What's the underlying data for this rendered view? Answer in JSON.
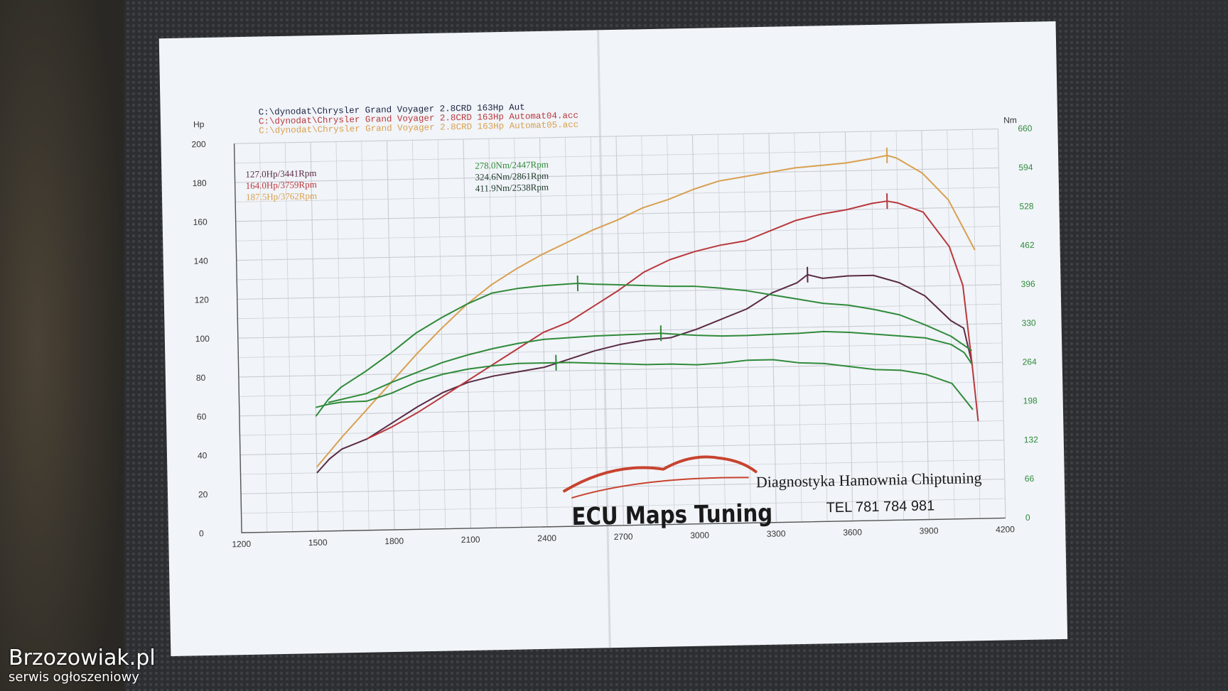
{
  "watermark": {
    "site": "Brzozowiak.pl",
    "tagline": "serwis ogłoszeniowy"
  },
  "colors": {
    "hp_stock": "#5a2a45",
    "hp_stage1": "#b8383c",
    "hp_stage2": "#d8a050",
    "torque": "#2f8a3a",
    "brand_swoosh": "#c7432f",
    "paper": "#f1f4f8",
    "grid": "#c9ccd3"
  },
  "chart_data": {
    "type": "line",
    "files": [
      "C:\\dynodat\\Chrysler Grand Voyager 2.8CRD 163Hp Aut",
      "C:\\dynodat\\Chrysler Grand Voyager 2.8CRD 163Hp Automat04.acc",
      "C:\\dynodat\\Chrysler Grand Voyager 2.8CRD 163Hp Automat05.acc"
    ],
    "left_axis": {
      "label": "Hp",
      "min": 0,
      "max": 200,
      "ticks": [
        0,
        20,
        40,
        60,
        80,
        100,
        120,
        140,
        160,
        180,
        200
      ]
    },
    "right_axis": {
      "label": "Nm",
      "min": 0,
      "max": 660,
      "ticks": [
        0,
        66,
        132,
        198,
        264,
        330,
        396,
        462,
        528,
        594,
        660
      ]
    },
    "x_axis": {
      "min": 1200,
      "max": 4200,
      "ticks": [
        1200,
        1500,
        1800,
        2100,
        2400,
        2700,
        3000,
        3300,
        3600,
        3900,
        4200
      ]
    },
    "power_peaks": [
      "127.0Hp/3441Rpm",
      "164.0Hp/3759Rpm",
      "187.5Hp/3762Rpm"
    ],
    "torque_peaks": [
      "278.0Nm/2447Rpm",
      "324.6Nm/2861Rpm",
      "411.9Nm/2538Rpm"
    ],
    "series": [
      {
        "unit": "hp",
        "color": "hp_stock",
        "peak_rpm": 3441,
        "points": [
          [
            1500,
            30
          ],
          [
            1550,
            37
          ],
          [
            1600,
            42
          ],
          [
            1700,
            47
          ],
          [
            1800,
            55
          ],
          [
            1900,
            63
          ],
          [
            2000,
            70
          ],
          [
            2100,
            75
          ],
          [
            2200,
            78
          ],
          [
            2300,
            80
          ],
          [
            2400,
            82
          ],
          [
            2500,
            86
          ],
          [
            2600,
            90
          ],
          [
            2700,
            93
          ],
          [
            2800,
            95
          ],
          [
            2900,
            96
          ],
          [
            3000,
            100
          ],
          [
            3100,
            105
          ],
          [
            3200,
            110
          ],
          [
            3300,
            118
          ],
          [
            3400,
            123
          ],
          [
            3441,
            127
          ],
          [
            3500,
            125
          ],
          [
            3600,
            126
          ],
          [
            3700,
            126
          ],
          [
            3800,
            122
          ],
          [
            3900,
            115
          ],
          [
            4000,
            102
          ],
          [
            4050,
            98
          ],
          [
            4080,
            80
          ]
        ]
      },
      {
        "unit": "hp",
        "color": "hp_stage1",
        "peak_rpm": 3759,
        "points": [
          [
            1700,
            47
          ],
          [
            1800,
            53
          ],
          [
            1900,
            60
          ],
          [
            2000,
            68
          ],
          [
            2100,
            76
          ],
          [
            2200,
            84
          ],
          [
            2300,
            92
          ],
          [
            2400,
            100
          ],
          [
            2500,
            105
          ],
          [
            2600,
            113
          ],
          [
            2700,
            121
          ],
          [
            2800,
            130
          ],
          [
            2900,
            136
          ],
          [
            3000,
            140
          ],
          [
            3100,
            143
          ],
          [
            3200,
            145
          ],
          [
            3300,
            150
          ],
          [
            3400,
            155
          ],
          [
            3500,
            158
          ],
          [
            3600,
            160
          ],
          [
            3700,
            163
          ],
          [
            3759,
            164
          ],
          [
            3800,
            163
          ],
          [
            3900,
            158
          ],
          [
            4000,
            140
          ],
          [
            4050,
            120
          ],
          [
            4080,
            80
          ],
          [
            4100,
            50
          ]
        ]
      },
      {
        "unit": "hp",
        "color": "hp_stage2",
        "peak_rpm": 3762,
        "points": [
          [
            1500,
            33
          ],
          [
            1600,
            48
          ],
          [
            1700,
            62
          ],
          [
            1800,
            76
          ],
          [
            1900,
            90
          ],
          [
            2000,
            103
          ],
          [
            2100,
            115
          ],
          [
            2200,
            125
          ],
          [
            2300,
            133
          ],
          [
            2400,
            140
          ],
          [
            2500,
            146
          ],
          [
            2600,
            152
          ],
          [
            2700,
            157
          ],
          [
            2800,
            163
          ],
          [
            2900,
            167
          ],
          [
            3000,
            172
          ],
          [
            3100,
            176
          ],
          [
            3200,
            178
          ],
          [
            3300,
            180
          ],
          [
            3400,
            182
          ],
          [
            3500,
            183
          ],
          [
            3600,
            184
          ],
          [
            3700,
            186
          ],
          [
            3762,
            187.5
          ],
          [
            3800,
            186
          ],
          [
            3900,
            178
          ],
          [
            4000,
            164
          ],
          [
            4100,
            138
          ]
        ]
      },
      {
        "unit": "nm",
        "color": "torque",
        "peak_rpm": 2447,
        "points": [
          [
            1500,
            210
          ],
          [
            1550,
            215
          ],
          [
            1600,
            218
          ],
          [
            1700,
            219
          ],
          [
            1800,
            232
          ],
          [
            1900,
            250
          ],
          [
            2000,
            262
          ],
          [
            2100,
            270
          ],
          [
            2200,
            275
          ],
          [
            2300,
            278
          ],
          [
            2400,
            278
          ],
          [
            2447,
            278
          ],
          [
            2500,
            278
          ],
          [
            2600,
            276
          ],
          [
            2700,
            274
          ],
          [
            2800,
            272
          ],
          [
            2900,
            272
          ],
          [
            3000,
            270
          ],
          [
            3100,
            272
          ],
          [
            3200,
            276
          ],
          [
            3300,
            276
          ],
          [
            3400,
            270
          ],
          [
            3500,
            268
          ],
          [
            3600,
            262
          ],
          [
            3700,
            256
          ],
          [
            3800,
            254
          ],
          [
            3900,
            246
          ],
          [
            4000,
            230
          ],
          [
            4050,
            202
          ],
          [
            4080,
            185
          ]
        ]
      },
      {
        "unit": "nm",
        "color": "torque",
        "peak_rpm": 2861,
        "points": [
          [
            1550,
            218
          ],
          [
            1700,
            232
          ],
          [
            1800,
            250
          ],
          [
            1900,
            266
          ],
          [
            2000,
            282
          ],
          [
            2100,
            294
          ],
          [
            2200,
            304
          ],
          [
            2300,
            312
          ],
          [
            2400,
            318
          ],
          [
            2500,
            320
          ],
          [
            2600,
            322
          ],
          [
            2700,
            323
          ],
          [
            2800,
            324
          ],
          [
            2861,
            324.6
          ],
          [
            2900,
            323
          ],
          [
            3000,
            320
          ],
          [
            3100,
            318
          ],
          [
            3200,
            318
          ],
          [
            3300,
            319
          ],
          [
            3400,
            320
          ],
          [
            3500,
            322
          ],
          [
            3600,
            320
          ],
          [
            3700,
            316
          ],
          [
            3800,
            312
          ],
          [
            3900,
            308
          ],
          [
            4000,
            296
          ],
          [
            4050,
            282
          ],
          [
            4080,
            262
          ]
        ]
      },
      {
        "unit": "nm",
        "color": "torque",
        "peak_rpm": 2538,
        "points": [
          [
            1500,
            195
          ],
          [
            1550,
            223
          ],
          [
            1600,
            243
          ],
          [
            1700,
            270
          ],
          [
            1800,
            300
          ],
          [
            1900,
            333
          ],
          [
            2000,
            358
          ],
          [
            2100,
            380
          ],
          [
            2200,
            398
          ],
          [
            2300,
            405
          ],
          [
            2400,
            409
          ],
          [
            2500,
            411
          ],
          [
            2538,
            411.9
          ],
          [
            2600,
            410
          ],
          [
            2700,
            408
          ],
          [
            2800,
            406
          ],
          [
            2900,
            404
          ],
          [
            3000,
            403
          ],
          [
            3100,
            399
          ],
          [
            3200,
            394
          ],
          [
            3300,
            386
          ],
          [
            3400,
            378
          ],
          [
            3500,
            370
          ],
          [
            3600,
            366
          ],
          [
            3700,
            358
          ],
          [
            3800,
            348
          ],
          [
            3900,
            330
          ],
          [
            4000,
            310
          ],
          [
            4080,
            285
          ]
        ]
      }
    ]
  },
  "brand": {
    "logo_text": "ECU Maps Tuning",
    "services": "Diagnostyka Hamownia Chiptuning",
    "phone": "TEL 781 784 981"
  }
}
